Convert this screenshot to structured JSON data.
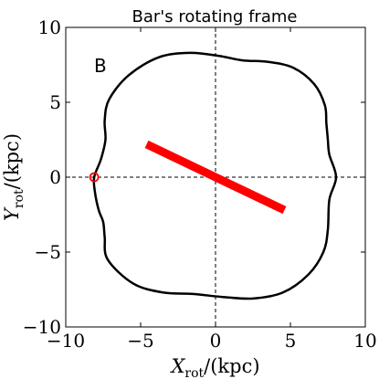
{
  "chart_data": {
    "type": "line",
    "title": "Bar's rotating frame",
    "panel_label": "B",
    "xlabel": {
      "main": "X",
      "sub": "rot",
      "rest": "/(kpc)"
    },
    "ylabel": {
      "main": "Y",
      "sub": "rot",
      "rest": "/(kpc)"
    },
    "xlim": [
      -10,
      10
    ],
    "ylim": [
      -10,
      10
    ],
    "xticks": [
      -10,
      -5,
      0,
      5,
      10
    ],
    "yticks": [
      -10,
      -5,
      0,
      5,
      10
    ],
    "xtick_labels": [
      "−10",
      "−5",
      "0",
      "5",
      "10"
    ],
    "ytick_labels": [
      "−10",
      "−5",
      "0",
      "5",
      "10"
    ],
    "reference_lines": {
      "x": 0,
      "y": 0,
      "style": "dashed"
    },
    "series": [
      {
        "type": "closed-curve",
        "color": "#000000",
        "points": [
          [
            8.05,
            0
          ],
          [
            7.6,
            -1.5
          ],
          [
            7.5,
            -3.5
          ],
          [
            7.2,
            -5.0
          ],
          [
            6.2,
            -6.5
          ],
          [
            4.5,
            -7.7
          ],
          [
            2.5,
            -8.1
          ],
          [
            0.5,
            -8.0
          ],
          [
            -1.5,
            -7.8
          ],
          [
            -3.5,
            -7.7
          ],
          [
            -5.5,
            -7.1
          ],
          [
            -7.2,
            -5.5
          ],
          [
            -7.4,
            -4.0
          ],
          [
            -7.5,
            -3.0
          ],
          [
            -7.8,
            -2.2
          ],
          [
            -8.05,
            -1.0
          ],
          [
            -8.1,
            0
          ],
          [
            -7.65,
            1.2
          ],
          [
            -7.35,
            2.5
          ],
          [
            -7.4,
            3.8
          ],
          [
            -7.1,
            5.2
          ],
          [
            -5.8,
            6.8
          ],
          [
            -3.8,
            8.0
          ],
          [
            -1.7,
            8.3
          ],
          [
            0.2,
            8.1
          ],
          [
            1.8,
            7.8
          ],
          [
            3.5,
            7.7
          ],
          [
            5.2,
            7.3
          ],
          [
            6.6,
            6.2
          ],
          [
            7.3,
            4.8
          ],
          [
            7.4,
            3.6
          ],
          [
            7.5,
            2.5
          ],
          [
            7.6,
            1.5
          ]
        ]
      },
      {
        "type": "bar-segment",
        "color": "#ff0000",
        "points": [
          [
            -4.6,
            2.2
          ],
          [
            4.6,
            -2.2
          ]
        ]
      },
      {
        "type": "marker",
        "marker": "circle-open",
        "color": "#ff0000",
        "points": [
          [
            -8.1,
            0
          ]
        ]
      }
    ],
    "grid": false
  }
}
